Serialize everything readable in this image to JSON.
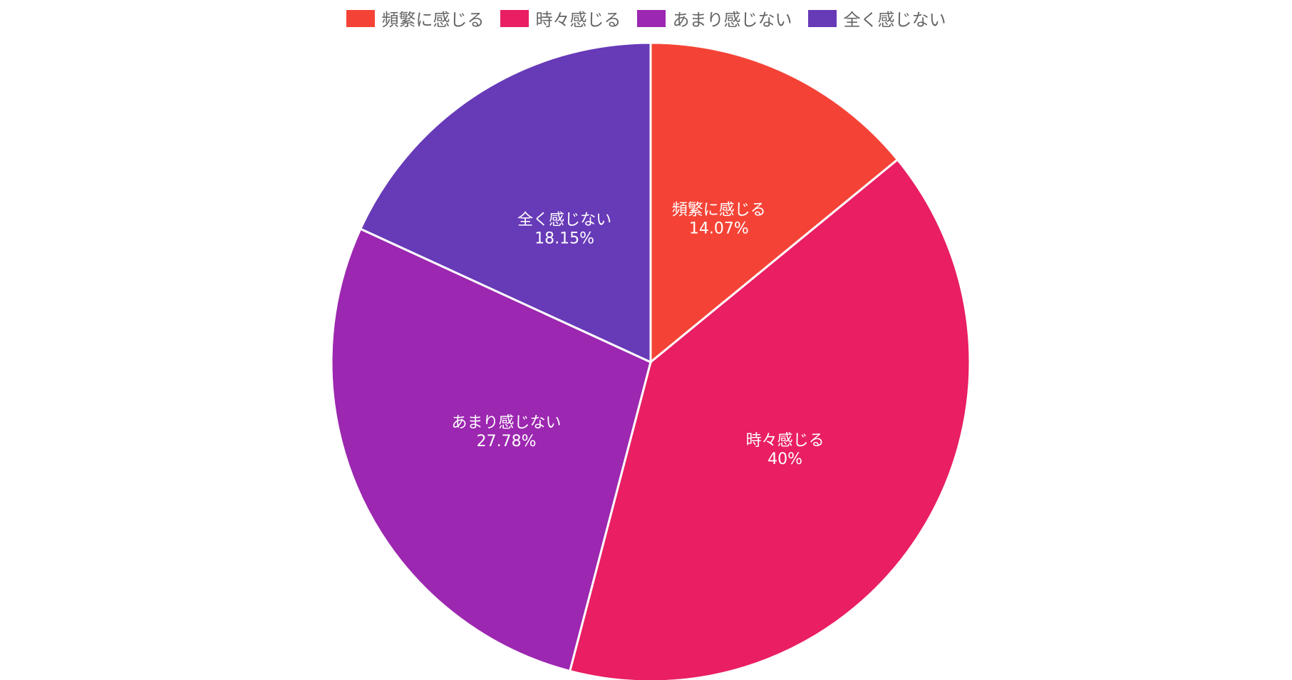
{
  "chart_data": {
    "type": "pie",
    "title": "",
    "legend_position": "top",
    "start_angle_deg": -90,
    "direction": "clockwise",
    "slices": [
      {
        "label": "頻繁に感じる",
        "value": 14.07,
        "value_label": "14.07%",
        "color": "#f44336"
      },
      {
        "label": "時々感じる",
        "value": 40,
        "value_label": "40%",
        "color": "#e91e63"
      },
      {
        "label": "あまり感じない",
        "value": 27.78,
        "value_label": "27.78%",
        "color": "#9c27b0"
      },
      {
        "label": "全く感じない",
        "value": 18.15,
        "value_label": "18.15%",
        "color": "#673ab7"
      }
    ]
  }
}
